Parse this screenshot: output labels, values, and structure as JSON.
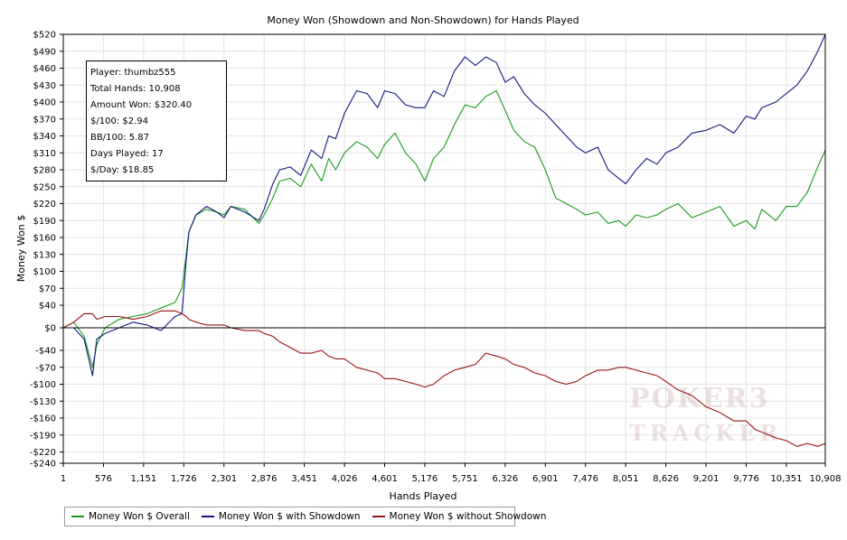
{
  "chart_data": {
    "type": "line",
    "title": "Money Won (Showdown and Non-Showdown) for Hands Played",
    "xlabel": "Hands Played",
    "ylabel": "Money Won $",
    "xlim": [
      1,
      10908
    ],
    "ylim": [
      -240,
      520
    ],
    "x_ticks": [
      1,
      576,
      1151,
      1726,
      2301,
      2876,
      3451,
      4026,
      4601,
      5176,
      5751,
      6326,
      6901,
      7476,
      8051,
      8626,
      9201,
      9776,
      10351,
      10908
    ],
    "x_tick_labels": [
      "1",
      "576",
      "1,151",
      "1,726",
      "2,301",
      "2,876",
      "3,451",
      "4,026",
      "4,601",
      "5,176",
      "5,751",
      "6,326",
      "6,901",
      "7,476",
      "8,051",
      "8,626",
      "9,201",
      "9,776",
      "10,351",
      "10,908"
    ],
    "y_ticks": [
      520,
      490,
      460,
      430,
      400,
      370,
      340,
      310,
      280,
      250,
      220,
      190,
      160,
      130,
      100,
      70,
      40,
      0,
      -40,
      -70,
      -100,
      -130,
      -160,
      -190,
      -220,
      -240
    ],
    "y_tick_labels": [
      "$520",
      "$490",
      "$460",
      "$430",
      "$400",
      "$370",
      "$340",
      "$310",
      "$280",
      "$250",
      "$220",
      "$190",
      "$160",
      "$130",
      "$100",
      "$70",
      "$40",
      "$0",
      "-$40",
      "-$70",
      "-$100",
      "-$130",
      "-$160",
      "-$190",
      "-$220",
      "-$240"
    ],
    "grid": true,
    "legend_position": "bottom-left",
    "series": [
      {
        "name": "Money Won $ Overall",
        "color": "#1a9a1a",
        "x": [
          1,
          150,
          300,
          420,
          480,
          600,
          800,
          1000,
          1200,
          1400,
          1600,
          1700,
          1760,
          1800,
          1900,
          2050,
          2200,
          2301,
          2400,
          2600,
          2800,
          2876,
          3000,
          3100,
          3250,
          3400,
          3550,
          3700,
          3800,
          3900,
          4026,
          4200,
          4350,
          4500,
          4601,
          4750,
          4900,
          5050,
          5176,
          5300,
          5450,
          5600,
          5751,
          5900,
          6050,
          6200,
          6326,
          6450,
          6600,
          6750,
          6901,
          7050,
          7200,
          7350,
          7476,
          7650,
          7800,
          7950,
          8051,
          8200,
          8350,
          8500,
          8626,
          8800,
          9000,
          9201,
          9400,
          9600,
          9776,
          9900,
          10000,
          10200,
          10351,
          10500,
          10650,
          10800,
          10908
        ],
        "values": [
          0,
          10,
          -15,
          -70,
          -30,
          0,
          15,
          20,
          25,
          35,
          45,
          70,
          130,
          170,
          200,
          210,
          205,
          200,
          215,
          210,
          185,
          200,
          230,
          260,
          265,
          250,
          290,
          260,
          300,
          280,
          310,
          330,
          320,
          300,
          325,
          345,
          310,
          290,
          260,
          300,
          320,
          360,
          395,
          390,
          410,
          420,
          385,
          350,
          330,
          320,
          280,
          230,
          220,
          210,
          200,
          205,
          185,
          190,
          180,
          200,
          195,
          200,
          210,
          220,
          195,
          205,
          215,
          180,
          190,
          175,
          210,
          190,
          215,
          215,
          240,
          285,
          315
        ]
      },
      {
        "name": "Money Won $ with Showdown",
        "color": "#101880",
        "x": [
          1,
          150,
          300,
          420,
          480,
          600,
          800,
          1000,
          1200,
          1400,
          1600,
          1700,
          1760,
          1800,
          1900,
          2050,
          2200,
          2301,
          2400,
          2600,
          2800,
          2876,
          3000,
          3100,
          3250,
          3400,
          3550,
          3700,
          3800,
          3900,
          4026,
          4200,
          4350,
          4500,
          4601,
          4750,
          4900,
          5050,
          5176,
          5300,
          5450,
          5600,
          5751,
          5900,
          6050,
          6200,
          6326,
          6450,
          6600,
          6750,
          6901,
          7050,
          7200,
          7350,
          7476,
          7650,
          7800,
          7950,
          8051,
          8200,
          8350,
          8500,
          8626,
          8800,
          9000,
          9201,
          9400,
          9600,
          9776,
          9900,
          10000,
          10200,
          10351,
          10500,
          10650,
          10800,
          10908
        ],
        "values": [
          0,
          0,
          -20,
          -85,
          -20,
          -10,
          0,
          10,
          5,
          -5,
          20,
          25,
          120,
          170,
          200,
          215,
          205,
          195,
          215,
          205,
          190,
          210,
          255,
          280,
          285,
          270,
          315,
          300,
          340,
          335,
          380,
          420,
          415,
          390,
          420,
          415,
          395,
          390,
          390,
          420,
          410,
          455,
          480,
          465,
          480,
          470,
          435,
          445,
          415,
          395,
          380,
          360,
          340,
          320,
          310,
          320,
          280,
          265,
          255,
          280,
          300,
          290,
          310,
          320,
          345,
          350,
          360,
          345,
          375,
          370,
          390,
          400,
          415,
          430,
          455,
          490,
          520
        ]
      },
      {
        "name": "Money Won $ without Showdown",
        "color": "#9a1010",
        "x": [
          1,
          150,
          300,
          420,
          480,
          600,
          800,
          1000,
          1200,
          1400,
          1600,
          1700,
          1760,
          1800,
          1900,
          2050,
          2200,
          2301,
          2400,
          2600,
          2800,
          2876,
          3000,
          3100,
          3250,
          3400,
          3550,
          3700,
          3800,
          3900,
          4026,
          4200,
          4350,
          4500,
          4601,
          4750,
          4900,
          5050,
          5176,
          5300,
          5450,
          5600,
          5751,
          5900,
          6050,
          6200,
          6326,
          6450,
          6600,
          6750,
          6901,
          7050,
          7200,
          7350,
          7476,
          7650,
          7800,
          7950,
          8051,
          8200,
          8350,
          8500,
          8626,
          8800,
          9000,
          9201,
          9400,
          9600,
          9776,
          9900,
          10000,
          10200,
          10351,
          10500,
          10650,
          10800,
          10908
        ],
        "values": [
          0,
          10,
          25,
          25,
          15,
          20,
          20,
          15,
          20,
          30,
          30,
          25,
          20,
          15,
          10,
          5,
          5,
          5,
          0,
          -5,
          -5,
          -10,
          -15,
          -25,
          -35,
          -45,
          -45,
          -40,
          -50,
          -55,
          -55,
          -70,
          -75,
          -80,
          -90,
          -90,
          -95,
          -100,
          -105,
          -100,
          -85,
          -75,
          -70,
          -65,
          -45,
          -50,
          -55,
          -65,
          -70,
          -80,
          -85,
          -95,
          -100,
          -95,
          -85,
          -75,
          -75,
          -70,
          -70,
          -75,
          -80,
          -85,
          -95,
          -110,
          -120,
          -140,
          -150,
          -165,
          -165,
          -180,
          -185,
          -195,
          -200,
          -210,
          -205,
          -210,
          -205
        ]
      }
    ]
  },
  "stats": [
    "Player: thumbz555",
    "Total Hands: 10,908",
    "Amount Won: $320.40",
    "$/100: $2.94",
    "BB/100: 5.87",
    "Days Played: 17",
    "$/Day: $18.85"
  ],
  "watermark": {
    "line1": "POKER3",
    "line2": "TRACKER"
  }
}
